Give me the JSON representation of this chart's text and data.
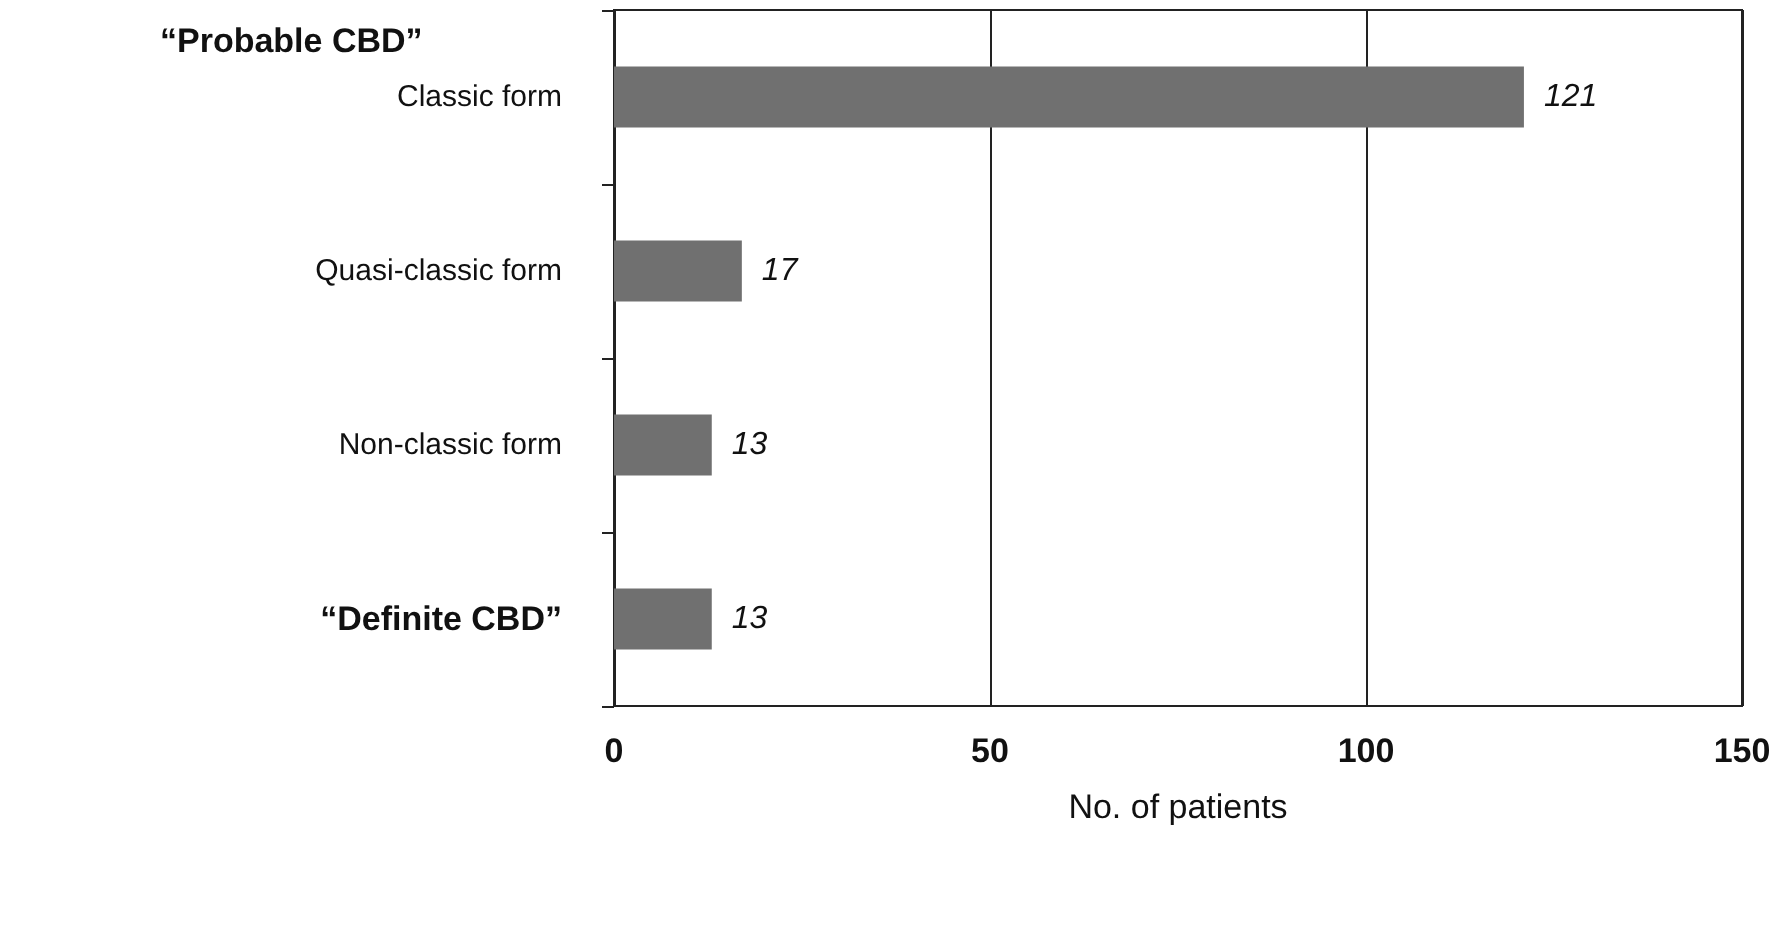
{
  "chart_data": {
    "type": "bar",
    "orientation": "horizontal",
    "xlabel": "No. of patients",
    "categories": [
      "Classic form",
      "Quasi-classic form",
      "Non-classic form",
      "“Definite CBD”"
    ],
    "values": [
      121,
      17,
      13,
      13
    ],
    "color": "#707070",
    "xlim": [
      0,
      150
    ],
    "xticks": [
      0,
      50,
      100,
      150
    ],
    "grid": "x",
    "data_labels": true,
    "annotations": [
      "“Probable CBD”"
    ]
  }
}
